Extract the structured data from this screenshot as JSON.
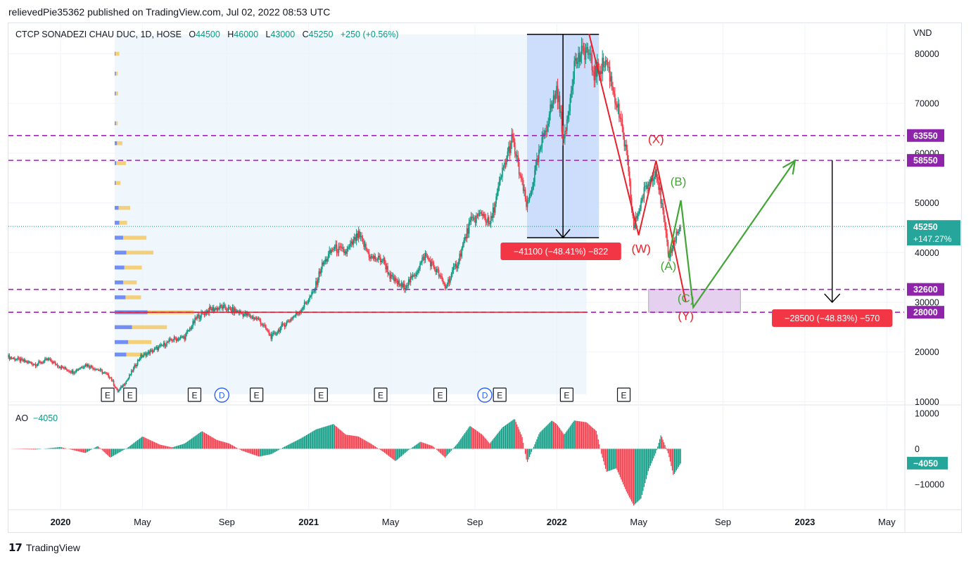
{
  "header": {
    "published_line": "relievedPie35362 published on TradingView.com, Jul 02, 2022 08:53 UTC"
  },
  "legend": {
    "symbol": "CTCP SONADEZI CHAU DUC, 1D, HOSE",
    "o_label": "O",
    "o_value": "44500",
    "h_label": "H",
    "h_value": "46000",
    "l_label": "L",
    "l_value": "43000",
    "c_label": "C",
    "c_value": "45250",
    "change": "+250 (+0.56%)"
  },
  "ao_legend": {
    "label": "AO",
    "value": "−4050"
  },
  "footer": {
    "brand": "TradingView",
    "logo_text": "17"
  },
  "colors": {
    "up": "#089981",
    "down": "#f23645",
    "dashed": "#9c27b0",
    "red_line": "#e8202a",
    "green_arrow": "#43a536",
    "measure_box": "#c6d9fb",
    "zone_box": "#e5d0f0",
    "volume_profile_blue": "#5b7cf4",
    "volume_profile_yellow": "#f5c55b",
    "price_badge": "#26a69a"
  },
  "chart_data": {
    "type": "candlestick",
    "price_unit": "VND",
    "y_axis_ticks": [
      "80000",
      "70000",
      "60000",
      "50000",
      "40000",
      "30000",
      "20000",
      "10000"
    ],
    "y_range": [
      9500,
      86000
    ],
    "x_axis_ticks": [
      {
        "label": "2020",
        "bold": true,
        "t": 0.0
      },
      {
        "label": "May",
        "bold": false,
        "t": 0.33
      },
      {
        "label": "Sep",
        "bold": false,
        "t": 0.67
      },
      {
        "label": "2021",
        "bold": true,
        "t": 1.0
      },
      {
        "label": "May",
        "bold": false,
        "t": 1.33
      },
      {
        "label": "Sep",
        "bold": false,
        "t": 1.67
      },
      {
        "label": "2022",
        "bold": true,
        "t": 2.0
      },
      {
        "label": "May",
        "bold": false,
        "t": 2.33
      },
      {
        "label": "Sep",
        "bold": false,
        "t": 2.67
      },
      {
        "label": "2023",
        "bold": true,
        "t": 3.0
      },
      {
        "label": "May",
        "bold": false,
        "t": 3.33
      }
    ],
    "x_range": [
      -0.21,
      3.4
    ],
    "horizontal_levels": [
      {
        "value": 63550,
        "label": "63550"
      },
      {
        "value": 58550,
        "label": "58550"
      },
      {
        "value": 32600,
        "label": "32600"
      },
      {
        "value": 28000,
        "label": "28000"
      }
    ],
    "support_line": {
      "value": 28000
    },
    "last_price": {
      "value": 45250,
      "label": "45250",
      "change_label": "+147.27%"
    },
    "price_path": [
      [
        -0.21,
        19000
      ],
      [
        -0.1,
        17500
      ],
      [
        -0.05,
        18500
      ],
      [
        0.0,
        17000
      ],
      [
        0.05,
        16000
      ],
      [
        0.1,
        17500
      ],
      [
        0.15,
        16500
      ],
      [
        0.2,
        15000
      ],
      [
        0.23,
        12000
      ],
      [
        0.27,
        14500
      ],
      [
        0.32,
        19000
      ],
      [
        0.4,
        21000
      ],
      [
        0.45,
        22500
      ],
      [
        0.5,
        23000
      ],
      [
        0.55,
        27000
      ],
      [
        0.6,
        28500
      ],
      [
        0.65,
        29000
      ],
      [
        0.72,
        28000
      ],
      [
        0.8,
        26500
      ],
      [
        0.85,
        23000
      ],
      [
        0.9,
        25500
      ],
      [
        0.96,
        28000
      ],
      [
        1.02,
        32000
      ],
      [
        1.05,
        37000
      ],
      [
        1.1,
        41000
      ],
      [
        1.15,
        40000
      ],
      [
        1.2,
        43500
      ],
      [
        1.25,
        39000
      ],
      [
        1.3,
        38500
      ],
      [
        1.33,
        35000
      ],
      [
        1.38,
        33000
      ],
      [
        1.42,
        35000
      ],
      [
        1.47,
        39500
      ],
      [
        1.52,
        36000
      ],
      [
        1.55,
        33000
      ],
      [
        1.6,
        38000
      ],
      [
        1.65,
        46000
      ],
      [
        1.7,
        48000
      ],
      [
        1.73,
        45500
      ],
      [
        1.78,
        56000
      ],
      [
        1.82,
        63000
      ],
      [
        1.85,
        56000
      ],
      [
        1.88,
        49000
      ],
      [
        1.93,
        60000
      ],
      [
        1.97,
        68000
      ],
      [
        2.0,
        73000
      ],
      [
        2.03,
        62000
      ],
      [
        2.07,
        78000
      ],
      [
        2.12,
        81000
      ],
      [
        2.15,
        76000
      ],
      [
        2.2,
        78500
      ],
      [
        2.25,
        68000
      ],
      [
        2.28,
        60000
      ],
      [
        2.31,
        45000
      ],
      [
        2.35,
        52000
      ],
      [
        2.4,
        57000
      ],
      [
        2.43,
        47000
      ],
      [
        2.45,
        39000
      ],
      [
        2.48,
        43500
      ],
      [
        2.5,
        45250
      ]
    ],
    "volume_profile": [
      {
        "price": 80000,
        "blue": 2,
        "yellow": 10
      },
      {
        "price": 76000,
        "blue": 3,
        "yellow": 5
      },
      {
        "price": 72000,
        "blue": 3,
        "yellow": 6
      },
      {
        "price": 66000,
        "blue": 3,
        "yellow": 5
      },
      {
        "price": 62000,
        "blue": 6,
        "yellow": 14
      },
      {
        "price": 58000,
        "blue": 4,
        "yellow": 25
      },
      {
        "price": 54000,
        "blue": 3,
        "yellow": 12
      },
      {
        "price": 49000,
        "blue": 10,
        "yellow": 30
      },
      {
        "price": 46000,
        "blue": 12,
        "yellow": 20
      },
      {
        "price": 43000,
        "blue": 22,
        "yellow": 60
      },
      {
        "price": 40000,
        "blue": 30,
        "yellow": 70
      },
      {
        "price": 37000,
        "blue": 25,
        "yellow": 45
      },
      {
        "price": 34000,
        "blue": 22,
        "yellow": 35
      },
      {
        "price": 31000,
        "blue": 28,
        "yellow": 40
      },
      {
        "price": 28000,
        "blue": 85,
        "yellow": 120
      },
      {
        "price": 25000,
        "blue": 45,
        "yellow": 90
      },
      {
        "price": 22000,
        "blue": 35,
        "yellow": 60
      },
      {
        "price": 19500,
        "blue": 30,
        "yellow": 50
      }
    ],
    "measure_box": {
      "t0": 1.88,
      "t1": 2.17,
      "top": 83900,
      "bottom": 43000,
      "label": "−41100 (−48.41%) −822"
    },
    "measure_box_2": {
      "t": 3.11,
      "top": 58550,
      "bottom": 30000,
      "label": "−28500 (−48.83%) −570"
    },
    "zone_box": {
      "t0": 2.37,
      "t1": 2.74,
      "top": 32600,
      "bottom": 28000
    },
    "red_path": [
      [
        2.13,
        84000
      ],
      [
        2.33,
        43500
      ],
      [
        2.4,
        58500
      ],
      [
        2.52,
        30000
      ]
    ],
    "green_path": [
      [
        2.45,
        39000
      ],
      [
        2.5,
        50500
      ],
      [
        2.55,
        29000
      ],
      [
        2.96,
        58500
      ]
    ],
    "wave_labels": [
      {
        "text": "(X)",
        "t": 2.4,
        "price": 62000,
        "color": "red"
      },
      {
        "text": "(W)",
        "t": 2.34,
        "price": 40000,
        "color": "red"
      },
      {
        "text": "(B)",
        "t": 2.49,
        "price": 53500,
        "color": "green"
      },
      {
        "text": "(A)",
        "t": 2.45,
        "price": 36500,
        "color": "green"
      },
      {
        "text": "(C)",
        "t": 2.52,
        "price": 30000,
        "color": "green"
      },
      {
        "text": "(Y)",
        "t": 2.52,
        "price": 26500,
        "color": "red"
      }
    ],
    "event_markers": [
      {
        "type": "E",
        "t": 0.19
      },
      {
        "type": "E",
        "t": 0.28
      },
      {
        "type": "E",
        "t": 0.54
      },
      {
        "type": "D",
        "t": 0.65
      },
      {
        "type": "E",
        "t": 0.79
      },
      {
        "type": "E",
        "t": 1.05
      },
      {
        "type": "E",
        "t": 1.29
      },
      {
        "type": "E",
        "t": 1.53
      },
      {
        "type": "D",
        "t": 1.71
      },
      {
        "type": "E",
        "t": 1.77
      },
      {
        "type": "E",
        "t": 2.04
      },
      {
        "type": "E",
        "t": 2.27
      }
    ],
    "ao": {
      "y_axis_ticks": [
        "10000",
        "0",
        "−10000"
      ],
      "y_range": [
        -17000,
        12000
      ],
      "last_value": -4050,
      "last_label": "−4050",
      "values": [
        [
          -0.21,
          0
        ],
        [
          -0.1,
          -200
        ],
        [
          0.0,
          500
        ],
        [
          0.1,
          -1200
        ],
        [
          0.15,
          800
        ],
        [
          0.2,
          -2500
        ],
        [
          0.27,
          300
        ],
        [
          0.33,
          3500
        ],
        [
          0.4,
          1200
        ],
        [
          0.45,
          400
        ],
        [
          0.5,
          1500
        ],
        [
          0.57,
          5000
        ],
        [
          0.63,
          2500
        ],
        [
          0.68,
          1500
        ],
        [
          0.73,
          -500
        ],
        [
          0.8,
          -2200
        ],
        [
          0.85,
          -1500
        ],
        [
          0.9,
          500
        ],
        [
          0.97,
          3000
        ],
        [
          1.03,
          5500
        ],
        [
          1.1,
          7000
        ],
        [
          1.15,
          4000
        ],
        [
          1.2,
          3500
        ],
        [
          1.25,
          1500
        ],
        [
          1.3,
          -800
        ],
        [
          1.35,
          -3500
        ],
        [
          1.4,
          -500
        ],
        [
          1.45,
          2000
        ],
        [
          1.5,
          800
        ],
        [
          1.55,
          -2500
        ],
        [
          1.6,
          1500
        ],
        [
          1.65,
          6500
        ],
        [
          1.7,
          4000
        ],
        [
          1.73,
          1500
        ],
        [
          1.78,
          6000
        ],
        [
          1.83,
          8500
        ],
        [
          1.86,
          3500
        ],
        [
          1.88,
          -4000
        ],
        [
          1.93,
          4500
        ],
        [
          1.98,
          8000
        ],
        [
          2.0,
          7000
        ],
        [
          2.03,
          4000
        ],
        [
          2.07,
          8000
        ],
        [
          2.12,
          7500
        ],
        [
          2.16,
          5000
        ],
        [
          2.18,
          -1500
        ],
        [
          2.2,
          -6500
        ],
        [
          2.24,
          -5500
        ],
        [
          2.28,
          -12000
        ],
        [
          2.31,
          -16000
        ],
        [
          2.34,
          -14000
        ],
        [
          2.37,
          -6000
        ],
        [
          2.4,
          -1000
        ],
        [
          2.42,
          4000
        ],
        [
          2.45,
          -1500
        ],
        [
          2.47,
          -7500
        ],
        [
          2.5,
          -4050
        ]
      ]
    }
  }
}
